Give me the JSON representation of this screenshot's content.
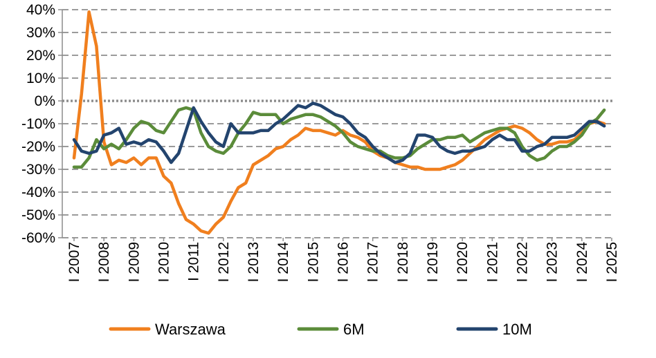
{
  "chart_data": {
    "type": "line",
    "y_ticks": [
      "40%",
      "30%",
      "20%",
      "10%",
      "0%",
      "-10%",
      "-20%",
      "-30%",
      "-40%",
      "-50%",
      "-60%"
    ],
    "ylim": [
      -60,
      40
    ],
    "x_ticks": [
      "I 2007",
      "I 2008",
      "I 2009",
      "I 2010",
      "I 2011",
      "I 2012",
      "I 2013",
      "I 2014",
      "I 2015",
      "I 2016",
      "I 2017",
      "I 2018",
      "I 2019",
      "I 2020",
      "I 2021",
      "I 2022",
      "I 2023",
      "I 2024",
      "I 2025"
    ],
    "xlim": [
      2007,
      2025
    ],
    "grid": "horizontal dashed",
    "zero_line": "dotted",
    "legend_position": "bottom",
    "series": [
      {
        "name": "Warszawa",
        "color": "#F07F1E",
        "points": [
          [
            2007.0,
            -25
          ],
          [
            2007.25,
            3
          ],
          [
            2007.5,
            39
          ],
          [
            2007.75,
            24
          ],
          [
            2008.0,
            -18
          ],
          [
            2008.25,
            -28
          ],
          [
            2008.5,
            -26
          ],
          [
            2008.75,
            -27
          ],
          [
            2009.0,
            -25
          ],
          [
            2009.25,
            -28
          ],
          [
            2009.5,
            -25
          ],
          [
            2009.75,
            -25
          ],
          [
            2010.0,
            -33
          ],
          [
            2010.25,
            -36
          ],
          [
            2010.5,
            -45
          ],
          [
            2010.75,
            -52
          ],
          [
            2011.0,
            -54
          ],
          [
            2011.25,
            -57
          ],
          [
            2011.5,
            -58
          ],
          [
            2011.75,
            -54
          ],
          [
            2012.0,
            -51
          ],
          [
            2012.25,
            -44
          ],
          [
            2012.5,
            -38
          ],
          [
            2012.75,
            -36
          ],
          [
            2013.0,
            -28
          ],
          [
            2013.25,
            -26
          ],
          [
            2013.5,
            -24
          ],
          [
            2013.75,
            -21
          ],
          [
            2014.0,
            -20
          ],
          [
            2014.25,
            -17
          ],
          [
            2014.5,
            -15
          ],
          [
            2014.75,
            -12
          ],
          [
            2015.0,
            -13
          ],
          [
            2015.25,
            -13
          ],
          [
            2015.5,
            -14
          ],
          [
            2015.75,
            -15
          ],
          [
            2016.0,
            -13
          ],
          [
            2016.25,
            -15
          ],
          [
            2016.5,
            -16
          ],
          [
            2016.75,
            -18
          ],
          [
            2017.0,
            -22
          ],
          [
            2017.25,
            -24
          ],
          [
            2017.5,
            -25
          ],
          [
            2017.75,
            -27
          ],
          [
            2018.0,
            -28
          ],
          [
            2018.25,
            -29
          ],
          [
            2018.5,
            -29
          ],
          [
            2018.75,
            -30
          ],
          [
            2019.0,
            -30
          ],
          [
            2019.25,
            -30
          ],
          [
            2019.5,
            -29
          ],
          [
            2019.75,
            -28
          ],
          [
            2020.0,
            -26
          ],
          [
            2020.25,
            -23
          ],
          [
            2020.5,
            -20
          ],
          [
            2020.75,
            -17
          ],
          [
            2021.0,
            -15
          ],
          [
            2021.25,
            -13
          ],
          [
            2021.5,
            -12
          ],
          [
            2021.75,
            -11
          ],
          [
            2022.0,
            -12
          ],
          [
            2022.25,
            -14
          ],
          [
            2022.5,
            -17
          ],
          [
            2022.75,
            -19
          ],
          [
            2023.0,
            -19
          ],
          [
            2023.25,
            -18
          ],
          [
            2023.5,
            -18
          ],
          [
            2023.75,
            -17
          ],
          [
            2024.0,
            -14
          ],
          [
            2024.25,
            -10
          ],
          [
            2024.5,
            -9
          ],
          [
            2024.75,
            -10
          ]
        ]
      },
      {
        "name": "6M",
        "color": "#5B8C3A",
        "points": [
          [
            2007.0,
            -29
          ],
          [
            2007.25,
            -29
          ],
          [
            2007.5,
            -25
          ],
          [
            2007.75,
            -17
          ],
          [
            2008.0,
            -21
          ],
          [
            2008.25,
            -19
          ],
          [
            2008.5,
            -21
          ],
          [
            2008.75,
            -17
          ],
          [
            2009.0,
            -12
          ],
          [
            2009.25,
            -9
          ],
          [
            2009.5,
            -10
          ],
          [
            2009.75,
            -13
          ],
          [
            2010.0,
            -14
          ],
          [
            2010.25,
            -9
          ],
          [
            2010.5,
            -4
          ],
          [
            2010.75,
            -3
          ],
          [
            2011.0,
            -4
          ],
          [
            2011.25,
            -14
          ],
          [
            2011.5,
            -20
          ],
          [
            2011.75,
            -22
          ],
          [
            2012.0,
            -23
          ],
          [
            2012.25,
            -20
          ],
          [
            2012.5,
            -14
          ],
          [
            2012.75,
            -10
          ],
          [
            2013.0,
            -5
          ],
          [
            2013.25,
            -6
          ],
          [
            2013.5,
            -6
          ],
          [
            2013.75,
            -6
          ],
          [
            2014.0,
            -10
          ],
          [
            2014.25,
            -8
          ],
          [
            2014.5,
            -7
          ],
          [
            2014.75,
            -6
          ],
          [
            2015.0,
            -6
          ],
          [
            2015.25,
            -7
          ],
          [
            2015.5,
            -9
          ],
          [
            2015.75,
            -11
          ],
          [
            2016.0,
            -14
          ],
          [
            2016.25,
            -18
          ],
          [
            2016.5,
            -20
          ],
          [
            2016.75,
            -21
          ],
          [
            2017.0,
            -22
          ],
          [
            2017.25,
            -22
          ],
          [
            2017.5,
            -24
          ],
          [
            2017.75,
            -25
          ],
          [
            2018.0,
            -25
          ],
          [
            2018.25,
            -24
          ],
          [
            2018.5,
            -21
          ],
          [
            2018.75,
            -19
          ],
          [
            2019.0,
            -17
          ],
          [
            2019.25,
            -17
          ],
          [
            2019.5,
            -16
          ],
          [
            2019.75,
            -16
          ],
          [
            2020.0,
            -15
          ],
          [
            2020.25,
            -18
          ],
          [
            2020.5,
            -16
          ],
          [
            2020.75,
            -14
          ],
          [
            2021.0,
            -13
          ],
          [
            2021.25,
            -12
          ],
          [
            2021.5,
            -12
          ],
          [
            2021.75,
            -14
          ],
          [
            2022.0,
            -20
          ],
          [
            2022.25,
            -24
          ],
          [
            2022.5,
            -26
          ],
          [
            2022.75,
            -25
          ],
          [
            2023.0,
            -22
          ],
          [
            2023.25,
            -20
          ],
          [
            2023.5,
            -20
          ],
          [
            2023.75,
            -18
          ],
          [
            2024.0,
            -15
          ],
          [
            2024.25,
            -10
          ],
          [
            2024.5,
            -8
          ],
          [
            2024.75,
            -4
          ]
        ]
      },
      {
        "name": "10M",
        "color": "#23446E",
        "points": [
          [
            2007.0,
            -17
          ],
          [
            2007.25,
            -22
          ],
          [
            2007.5,
            -23
          ],
          [
            2007.75,
            -22
          ],
          [
            2008.0,
            -15
          ],
          [
            2008.25,
            -14
          ],
          [
            2008.5,
            -12
          ],
          [
            2008.75,
            -19
          ],
          [
            2009.0,
            -18
          ],
          [
            2009.25,
            -19
          ],
          [
            2009.5,
            -17
          ],
          [
            2009.75,
            -18
          ],
          [
            2010.0,
            -22
          ],
          [
            2010.25,
            -27
          ],
          [
            2010.5,
            -23
          ],
          [
            2010.75,
            -13
          ],
          [
            2011.0,
            -3
          ],
          [
            2011.25,
            -9
          ],
          [
            2011.5,
            -14
          ],
          [
            2011.75,
            -18
          ],
          [
            2012.0,
            -20
          ],
          [
            2012.25,
            -10
          ],
          [
            2012.5,
            -14
          ],
          [
            2012.75,
            -14
          ],
          [
            2013.0,
            -14
          ],
          [
            2013.25,
            -13
          ],
          [
            2013.5,
            -13
          ],
          [
            2013.75,
            -10
          ],
          [
            2014.0,
            -8
          ],
          [
            2014.25,
            -5
          ],
          [
            2014.5,
            -2
          ],
          [
            2014.75,
            -3
          ],
          [
            2015.0,
            -1
          ],
          [
            2015.25,
            -2
          ],
          [
            2015.5,
            -4
          ],
          [
            2015.75,
            -6
          ],
          [
            2016.0,
            -7
          ],
          [
            2016.25,
            -10
          ],
          [
            2016.5,
            -14
          ],
          [
            2016.75,
            -16
          ],
          [
            2017.0,
            -20
          ],
          [
            2017.25,
            -23
          ],
          [
            2017.5,
            -25
          ],
          [
            2017.75,
            -27
          ],
          [
            2018.0,
            -26
          ],
          [
            2018.25,
            -23
          ],
          [
            2018.5,
            -15
          ],
          [
            2018.75,
            -15
          ],
          [
            2019.0,
            -16
          ],
          [
            2019.25,
            -20
          ],
          [
            2019.5,
            -22
          ],
          [
            2019.75,
            -23
          ],
          [
            2020.0,
            -22
          ],
          [
            2020.25,
            -22
          ],
          [
            2020.5,
            -21
          ],
          [
            2020.75,
            -20
          ],
          [
            2021.0,
            -17
          ],
          [
            2021.25,
            -15
          ],
          [
            2021.5,
            -17
          ],
          [
            2021.75,
            -17
          ],
          [
            2022.0,
            -22
          ],
          [
            2022.25,
            -22
          ],
          [
            2022.5,
            -20
          ],
          [
            2022.75,
            -19
          ],
          [
            2023.0,
            -16
          ],
          [
            2023.25,
            -16
          ],
          [
            2023.5,
            -16
          ],
          [
            2023.75,
            -15
          ],
          [
            2024.0,
            -12
          ],
          [
            2024.25,
            -9
          ],
          [
            2024.5,
            -9
          ],
          [
            2024.75,
            -11
          ]
        ]
      }
    ]
  }
}
